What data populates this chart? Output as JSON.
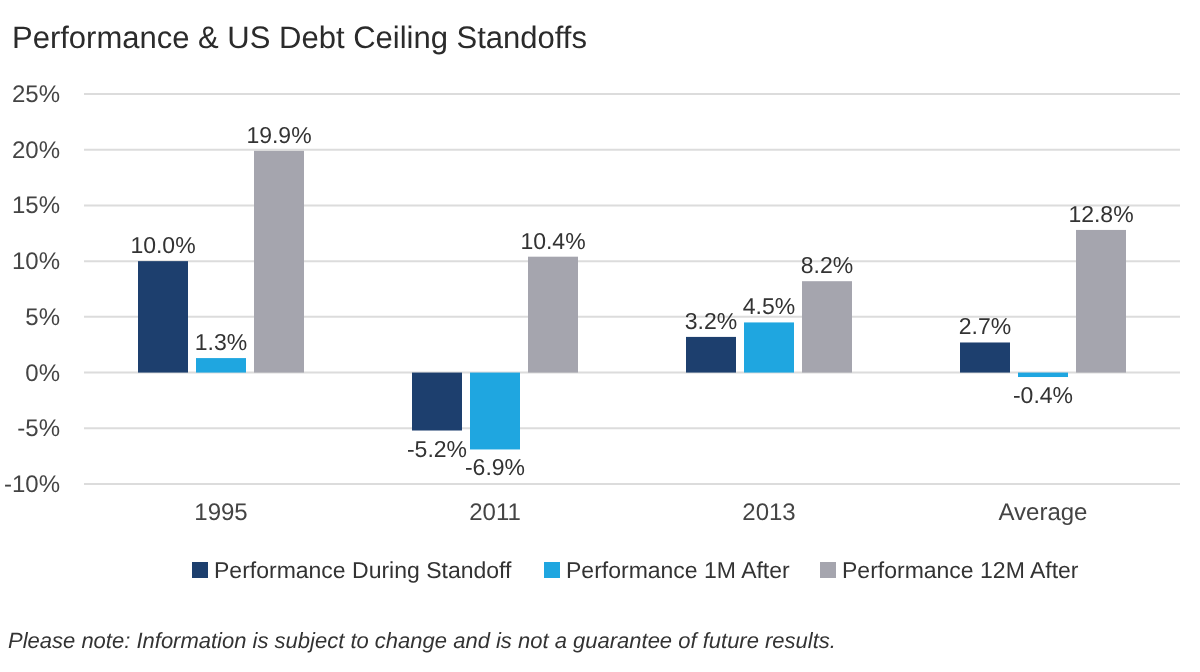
{
  "chart_data": {
    "type": "bar",
    "title": "Performance & US Debt Ceiling Standoffs",
    "categories": [
      "1995",
      "2011",
      "2013",
      "Average"
    ],
    "series": [
      {
        "name": "Performance During Standoff",
        "color": "#1d3f6e",
        "values": [
          10.0,
          -5.2,
          3.2,
          2.7
        ]
      },
      {
        "name": "Performance 1M After",
        "color": "#1fa6e0",
        "values": [
          1.3,
          -6.9,
          4.5,
          -0.4
        ]
      },
      {
        "name": "Performance 12M After",
        "color": "#a5a5ae",
        "values": [
          19.9,
          10.4,
          8.2,
          12.8
        ]
      }
    ],
    "value_labels": [
      [
        "10.0%",
        "-5.2%",
        "3.2%",
        "2.7%"
      ],
      [
        "1.3%",
        "-6.9%",
        "4.5%",
        "-0.4%"
      ],
      [
        "19.9%",
        "10.4%",
        "8.2%",
        "12.8%"
      ]
    ],
    "ylim": [
      -10,
      25
    ],
    "yticks": [
      {
        "value": -10,
        "label": "-10%"
      },
      {
        "value": -5,
        "label": "-5%"
      },
      {
        "value": 0,
        "label": "0%"
      },
      {
        "value": 5,
        "label": "5%"
      },
      {
        "value": 10,
        "label": "10%"
      },
      {
        "value": 15,
        "label": "15%"
      },
      {
        "value": 20,
        "label": "20%"
      },
      {
        "value": 25,
        "label": "25%"
      }
    ],
    "grid": "y",
    "legend": "bottom",
    "annotations": [
      "Please note: Information is subject to change and is not a guarantee of future results."
    ]
  }
}
